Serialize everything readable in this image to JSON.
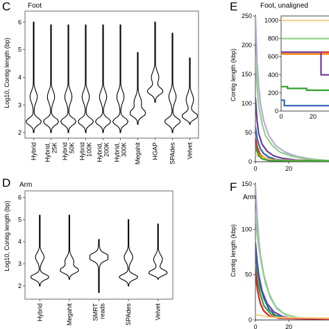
{
  "figure_title": "",
  "chart_data": [
    {
      "panel": "C",
      "type": "violin",
      "title": "Foot",
      "ylabel": "Log10, Contig length (bp)",
      "ylim": [
        1.8,
        6.4
      ],
      "yticks": [
        2,
        3,
        4,
        5,
        6
      ],
      "categories": [
        "Hybrid",
        "Hybrid, 25K",
        "Hybrid, 50K",
        "Hybrid, 100K",
        "Hybrid, 200K",
        "Hybrid, 300K",
        "Megahit",
        "HGAP",
        "SPAdes",
        "Velvet"
      ],
      "series": [
        {
          "category": "Hybrid",
          "min": 2.0,
          "max": 6.0,
          "mode": 2.4,
          "bulge": 3.3
        },
        {
          "category": "Hybrid, 25K",
          "min": 2.0,
          "max": 5.9,
          "mode": 2.4,
          "bulge": 3.3
        },
        {
          "category": "Hybrid, 50K",
          "min": 2.0,
          "max": 5.9,
          "mode": 2.4,
          "bulge": 3.3
        },
        {
          "category": "Hybrid, 100K",
          "min": 2.0,
          "max": 5.9,
          "mode": 2.4,
          "bulge": 3.3
        },
        {
          "category": "Hybrid, 200K",
          "min": 2.0,
          "max": 5.9,
          "mode": 2.4,
          "bulge": 3.3
        },
        {
          "category": "Hybrid, 300K",
          "min": 2.0,
          "max": 5.9,
          "mode": 2.4,
          "bulge": 3.3
        },
        {
          "category": "Megahit",
          "min": 2.3,
          "max": 4.9,
          "mode": 2.7,
          "bulge": 3.1
        },
        {
          "category": "HGAP",
          "min": 3.1,
          "max": 6.0,
          "mode": 3.5,
          "bulge": 4.0
        },
        {
          "category": "SPAdes",
          "min": 2.0,
          "max": 5.6,
          "mode": 2.4,
          "bulge": 3.3
        },
        {
          "category": "Velvet",
          "min": 2.3,
          "max": 4.7,
          "mode": 2.6,
          "bulge": 3.2
        }
      ]
    },
    {
      "panel": "D",
      "type": "violin",
      "title": "Arm",
      "ylabel": "Log10, Contig length (bp)",
      "ylim": [
        1.4,
        6.3
      ],
      "yticks": [
        2,
        3,
        4,
        5,
        6
      ],
      "categories": [
        "Hybrid",
        "Megahit",
        "SMRT reads",
        "SPAdes",
        "Velvet"
      ],
      "series": [
        {
          "category": "Hybrid",
          "min": 2.0,
          "max": 5.2,
          "mode": 2.4,
          "bulge": 3.3
        },
        {
          "category": "Megahit",
          "min": 2.3,
          "max": 5.2,
          "mode": 2.7,
          "bulge": 3.1
        },
        {
          "category": "SMRT reads",
          "min": 1.7,
          "max": 4.1,
          "mode": 3.3,
          "bulge": 3.3
        },
        {
          "category": "SPAdes",
          "min": 2.0,
          "max": 5.0,
          "mode": 2.4,
          "bulge": 3.3
        },
        {
          "category": "Velvet",
          "min": 2.3,
          "max": 4.8,
          "mode": 2.6,
          "bulge": 3.2
        }
      ]
    },
    {
      "panel": "E",
      "type": "line",
      "title": "Foot, unaligned",
      "ylabel": "Contig length (kbp)",
      "xlim": [
        0,
        44
      ],
      "ylim": [
        0,
        250
      ],
      "yticks": [
        0,
        50,
        100,
        150,
        200,
        250
      ],
      "xticks": [
        0,
        20
      ],
      "series": [
        {
          "color": "#b9a8d9",
          "x": [
            0,
            1,
            2,
            3,
            5,
            8,
            12,
            18,
            25,
            35,
            44
          ],
          "y": [
            250,
            170,
            130,
            100,
            70,
            45,
            28,
            16,
            9,
            4,
            2
          ]
        },
        {
          "color": "#8ed48a",
          "x": [
            0,
            1,
            2,
            4,
            6,
            10,
            15,
            22,
            30,
            44
          ],
          "y": [
            180,
            130,
            95,
            65,
            45,
            28,
            16,
            9,
            5,
            2
          ]
        },
        {
          "color": "#6a3d9a",
          "x": [
            0,
            1,
            2,
            4,
            7,
            11,
            16,
            24,
            44
          ],
          "y": [
            110,
            70,
            48,
            30,
            18,
            10,
            6,
            3,
            1
          ]
        },
        {
          "color": "#2c67b1",
          "x": [
            0,
            1,
            2,
            3,
            5,
            8,
            12,
            20,
            44
          ],
          "y": [
            60,
            40,
            30,
            22,
            14,
            8,
            4,
            2,
            1
          ]
        },
        {
          "color": "#e31a1c",
          "x": [
            0,
            1,
            2,
            3,
            5,
            9,
            15,
            44
          ],
          "y": [
            40,
            26,
            18,
            12,
            7,
            4,
            2,
            1
          ]
        },
        {
          "color": "#ff7f00",
          "x": [
            0,
            1,
            3,
            6,
            10,
            44
          ],
          "y": [
            25,
            18,
            11,
            6,
            3,
            1
          ]
        },
        {
          "color": "#f2d08a",
          "x": [
            0,
            2,
            5,
            10,
            44
          ],
          "y": [
            12,
            9,
            6,
            3,
            1
          ]
        },
        {
          "color": "#33a02c",
          "x": [
            0,
            1,
            2,
            4,
            8,
            44
          ],
          "y": [
            30,
            18,
            10,
            5,
            2,
            1
          ]
        }
      ],
      "inset": {
        "yticks": [
          0,
          200,
          400,
          600,
          800,
          1000
        ],
        "xticks": [
          0,
          20
        ],
        "xlim": [
          0,
          30
        ],
        "ylim": [
          0,
          1050
        ],
        "series": [
          {
            "color": "#f2d08a",
            "x": [
              0,
              30
            ],
            "y": [
              1000,
              1000
            ]
          },
          {
            "color": "#8ed48a",
            "x": [
              0,
              30
            ],
            "y": [
              800,
              800
            ]
          },
          {
            "color": "#e31a1c",
            "x": [
              0,
              30
            ],
            "y": [
              650,
              650
            ]
          },
          {
            "color": "#ff7f00",
            "x": [
              0,
              30
            ],
            "y": [
              630,
              630
            ]
          },
          {
            "color": "#6a3d9a",
            "x": [
              0,
              25,
              25,
              30
            ],
            "y": [
              650,
              650,
              400,
              400
            ]
          },
          {
            "color": "#33a02c",
            "x": [
              0,
              4,
              4,
              16,
              16,
              30
            ],
            "y": [
              270,
              270,
              250,
              250,
              230,
              230
            ]
          },
          {
            "color": "#2c67b1",
            "x": [
              0,
              2,
              2,
              30
            ],
            "y": [
              120,
              120,
              60,
              60
            ]
          }
        ]
      }
    },
    {
      "panel": "F",
      "type": "line",
      "title": "Arm",
      "ylabel": "Contig length (kbp)",
      "xlim": [
        0,
        44
      ],
      "ylim": [
        0,
        150
      ],
      "yticks": [
        0,
        50,
        100,
        150
      ],
      "xticks": [
        0,
        20
      ],
      "series": [
        {
          "color": "#b9a8d9",
          "x": [
            0,
            1,
            2,
            3,
            5,
            8,
            12,
            17,
            24,
            32,
            44
          ],
          "y": [
            148,
            115,
            90,
            72,
            50,
            30,
            15,
            7,
            3,
            1.5,
            1
          ]
        },
        {
          "color": "#8ed48a",
          "x": [
            0,
            1,
            2,
            4,
            6,
            9,
            13,
            18,
            26,
            44
          ],
          "y": [
            120,
            95,
            80,
            58,
            40,
            24,
            12,
            6,
            2.5,
            1
          ]
        },
        {
          "color": "#6a3d9a",
          "x": [
            0,
            1,
            2,
            4,
            7,
            11,
            16,
            24,
            44
          ],
          "y": [
            85,
            65,
            50,
            32,
            18,
            9,
            4,
            1.5,
            1
          ]
        },
        {
          "color": "#2c67b1",
          "x": [
            0,
            1,
            2,
            3,
            5,
            8,
            12,
            20,
            44
          ],
          "y": [
            75,
            58,
            46,
            36,
            24,
            12,
            5,
            2,
            1
          ]
        },
        {
          "color": "#33a02c",
          "x": [
            0,
            1,
            2,
            3,
            5,
            9,
            14,
            44
          ],
          "y": [
            60,
            45,
            36,
            28,
            16,
            7,
            3,
            1
          ]
        },
        {
          "color": "#e31a1c",
          "x": [
            0,
            1,
            2,
            3,
            5,
            8,
            14,
            44
          ],
          "y": [
            55,
            36,
            26,
            18,
            10,
            5,
            2,
            1
          ]
        },
        {
          "color": "#f2d08a",
          "x": [
            0,
            3,
            6,
            10,
            44
          ],
          "y": [
            6,
            5,
            4,
            3,
            2
          ]
        }
      ]
    }
  ]
}
